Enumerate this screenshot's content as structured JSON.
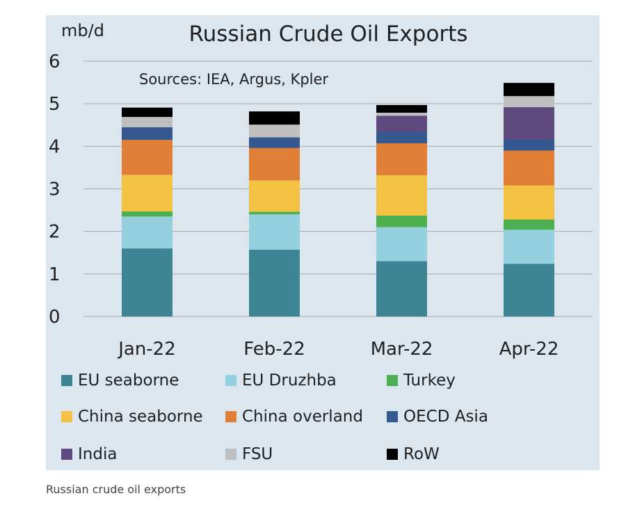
{
  "chart_data": {
    "type": "bar",
    "stacked": true,
    "title": "Russian Crude Oil Exports",
    "ylabel": "mb/d",
    "annotation": "Sources: IEA, Argus, Kpler",
    "ylim": [
      0,
      6
    ],
    "yticks": [
      "0",
      "1",
      "2",
      "3",
      "4",
      "5",
      "6"
    ],
    "grid": true,
    "legend_position": "bottom",
    "categories": [
      "Jan-22",
      "Feb-22",
      "Mar-22",
      "Apr-22"
    ],
    "series": [
      {
        "name": "EU seaborne",
        "color": "#3d8595",
        "values": [
          1.6,
          1.57,
          1.3,
          1.24
        ]
      },
      {
        "name": "EU Druzhba",
        "color": "#95d0de",
        "values": [
          0.75,
          0.83,
          0.8,
          0.8
        ]
      },
      {
        "name": "Turkey",
        "color": "#4caf50",
        "values": [
          0.12,
          0.06,
          0.27,
          0.24
        ]
      },
      {
        "name": "China seaborne",
        "color": "#f3c242",
        "values": [
          0.86,
          0.74,
          0.95,
          0.8
        ]
      },
      {
        "name": "China overland",
        "color": "#e07f35",
        "values": [
          0.82,
          0.76,
          0.75,
          0.82
        ]
      },
      {
        "name": "OECD Asia",
        "color": "#34588f",
        "values": [
          0.3,
          0.25,
          0.27,
          0.26
        ]
      },
      {
        "name": "India",
        "color": "#5e4a7c",
        "values": [
          0.0,
          0.0,
          0.38,
          0.76
        ]
      },
      {
        "name": "FSU",
        "color": "#bfbfbf",
        "values": [
          0.24,
          0.3,
          0.07,
          0.26
        ]
      },
      {
        "name": "RoW",
        "color": "#000000",
        "values": [
          0.22,
          0.31,
          0.18,
          0.31
        ]
      }
    ]
  },
  "caption": "Russian crude oil exports"
}
